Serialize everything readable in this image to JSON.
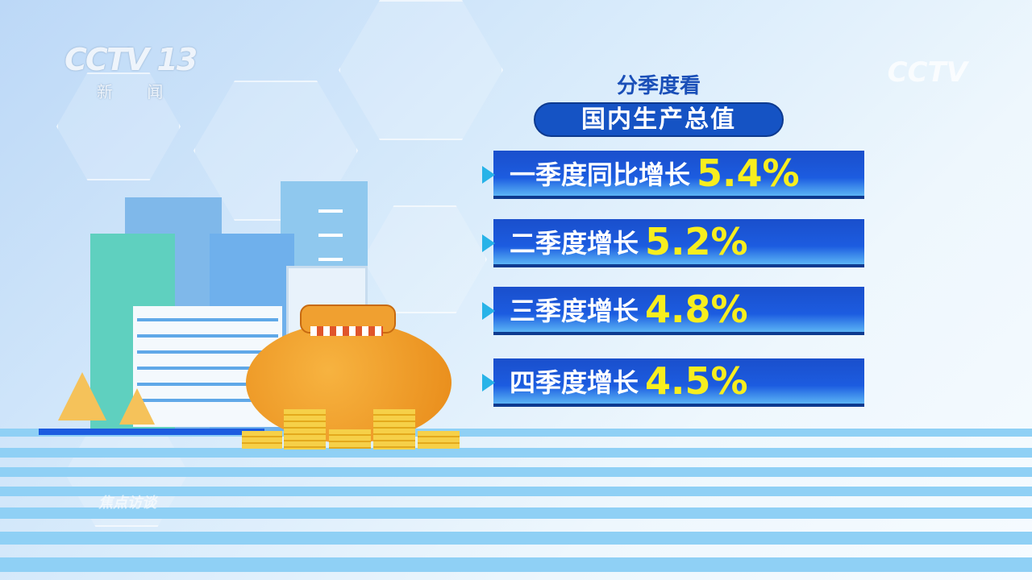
{
  "logo": {
    "channel": "CCTV 13",
    "name": "新 闻"
  },
  "watermarks": {
    "top_right": "CCTV",
    "program": "焦点访谈"
  },
  "header": {
    "subtitle": "分季度看",
    "title": "国内生产总值"
  },
  "rows": [
    {
      "label": "一季度同比增长",
      "value": "5.4%"
    },
    {
      "label": "二季度增长",
      "value": "5.2%"
    },
    {
      "label": "三季度增长",
      "value": "4.8%"
    },
    {
      "label": "四季度增长",
      "value": "4.5%"
    }
  ],
  "colors": {
    "bar": "#1c5ce0",
    "value": "#f7ee1e",
    "pill": "#1553c4",
    "subtitle": "#1a4fb8"
  }
}
